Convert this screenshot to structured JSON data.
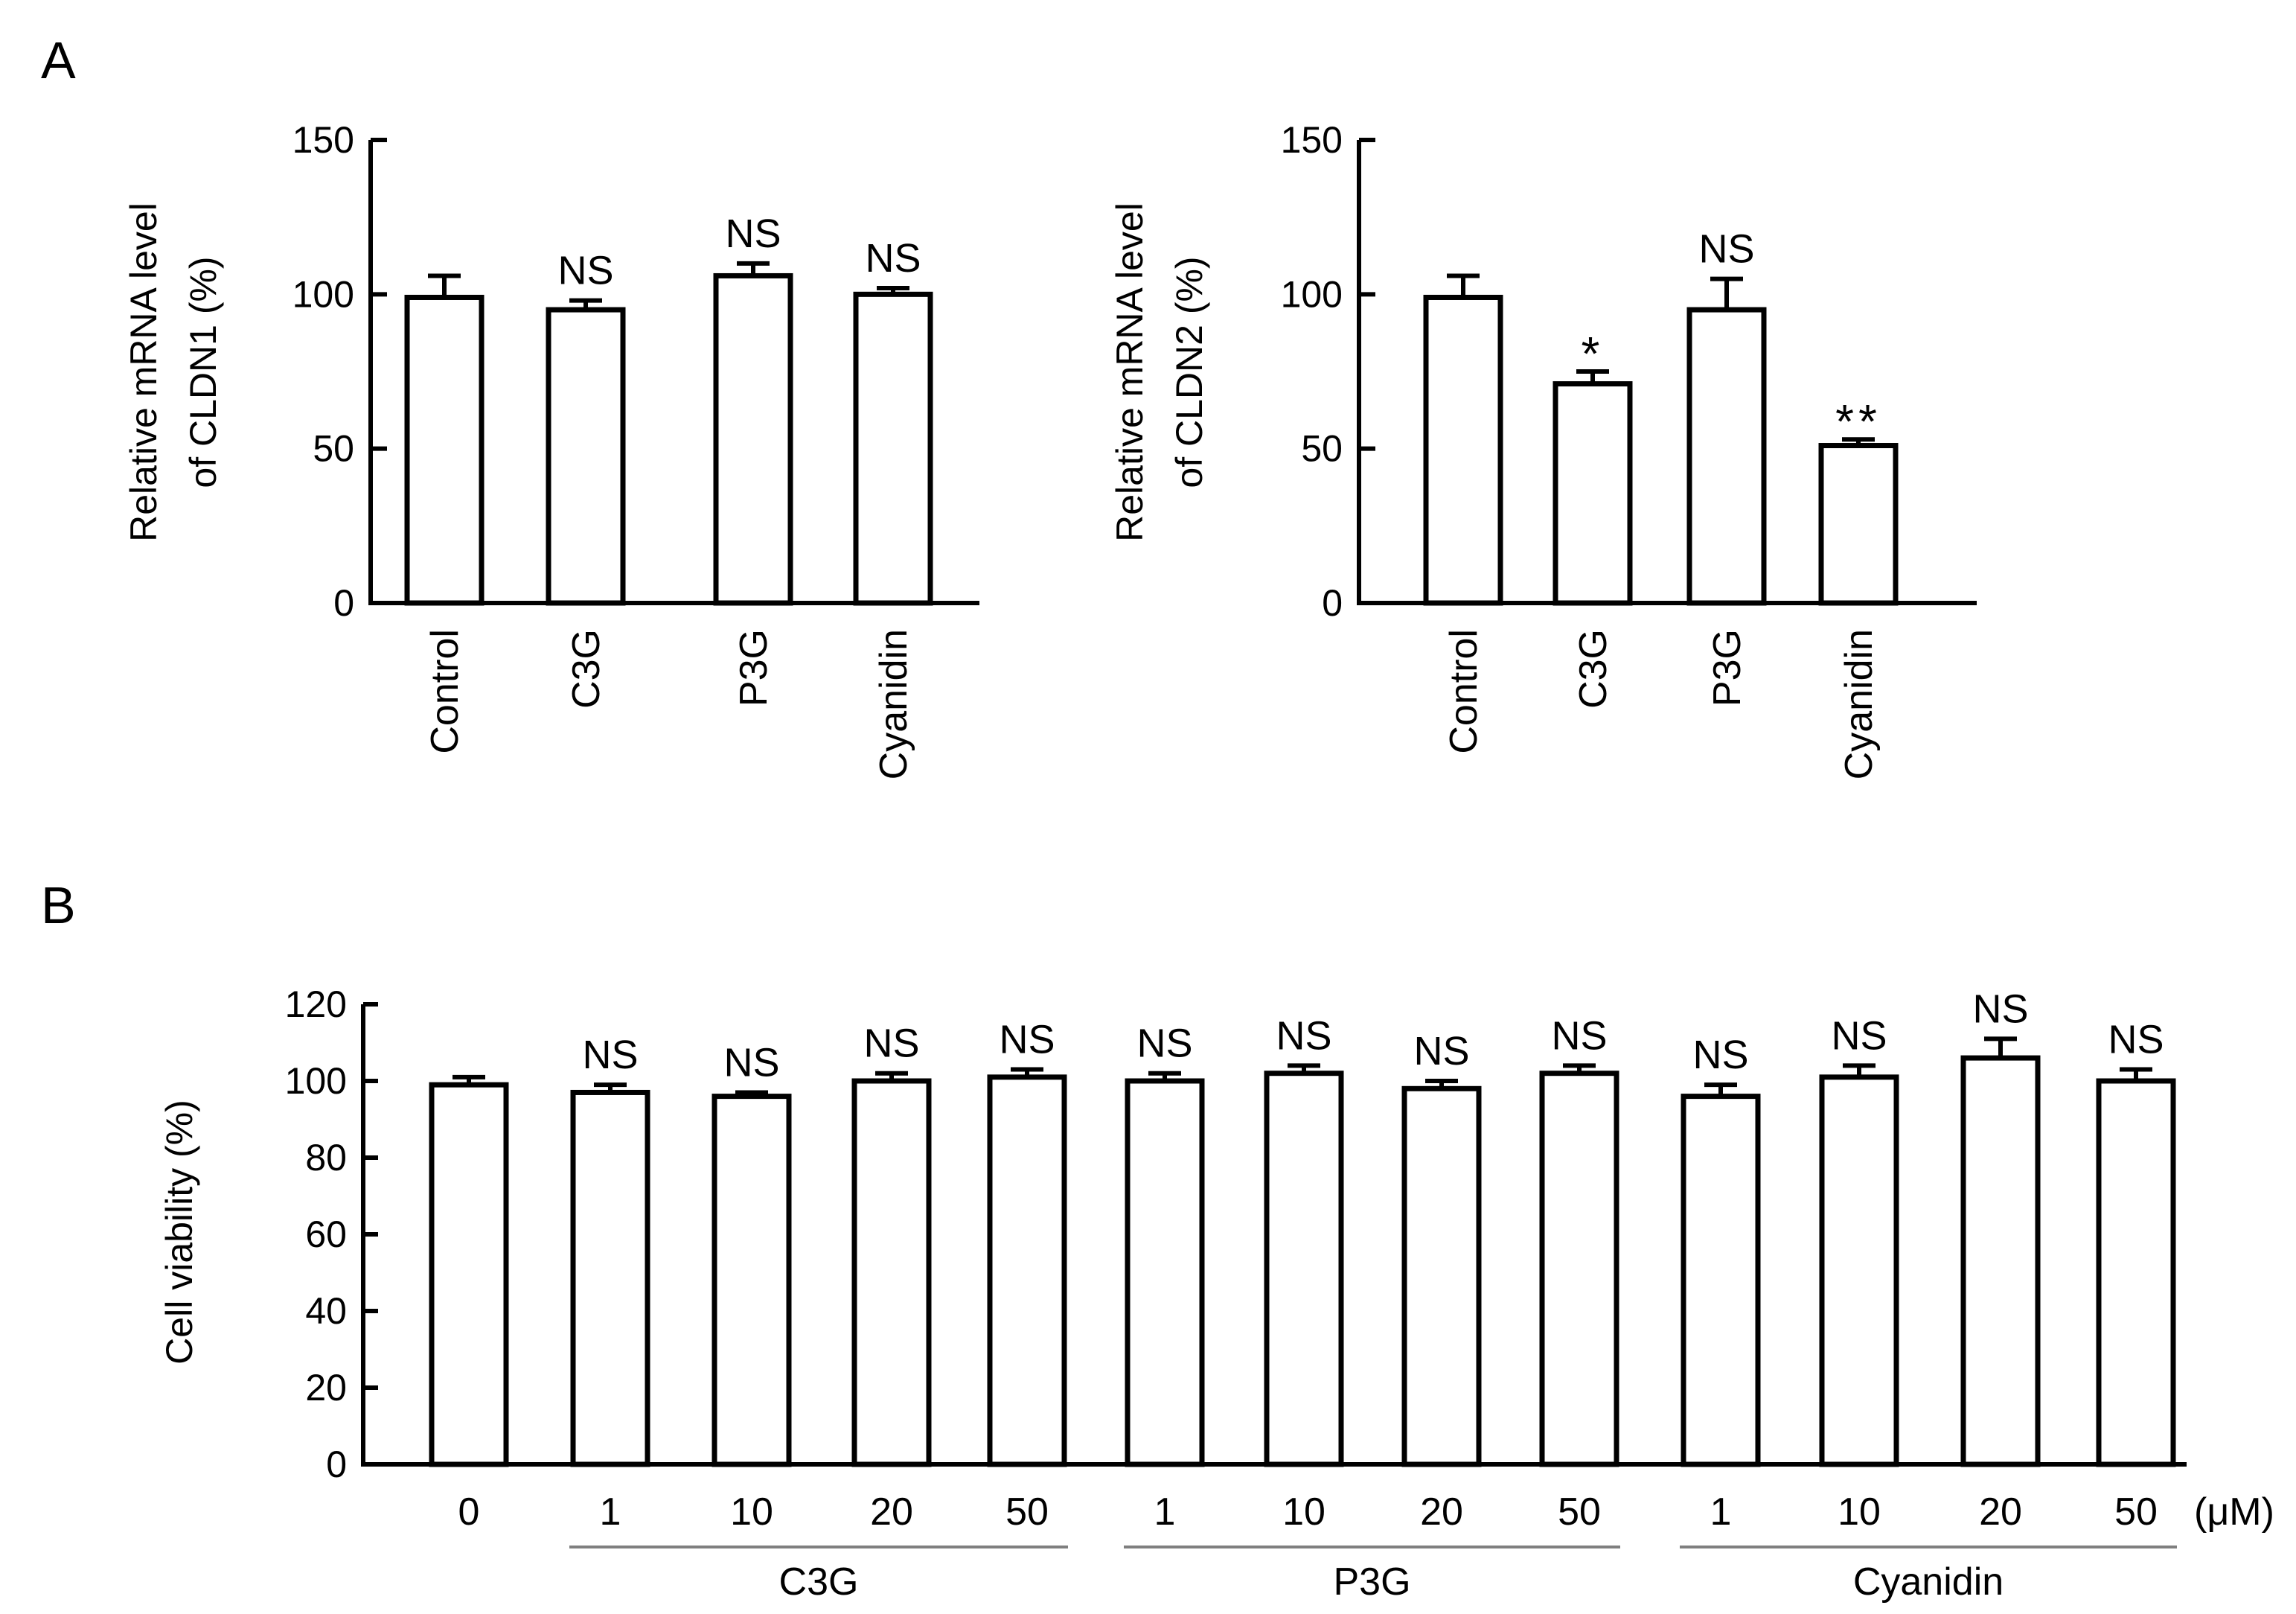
{
  "chart_data": [
    {
      "type": "bar",
      "panel": "A",
      "ylabel_line1": "Relative mRNA level",
      "ylabel_line2": "of CLDN1 (%)",
      "categories": [
        "Control",
        "C3G",
        "P3G",
        "Cyanidin"
      ],
      "values": [
        99,
        95,
        106,
        100
      ],
      "errors": [
        7,
        3,
        4,
        2
      ],
      "annotations": [
        "",
        "NS",
        "NS",
        "NS"
      ],
      "ylim": [
        0,
        150
      ],
      "yticks": [
        0,
        50,
        100,
        150
      ]
    },
    {
      "type": "bar",
      "ylabel_line1": "Relative mRNA level",
      "ylabel_line2": "of CLDN2 (%)",
      "categories": [
        "Control",
        "C3G",
        "P3G",
        "Cyanidin"
      ],
      "values": [
        99,
        71,
        95,
        51
      ],
      "errors": [
        7,
        4,
        10,
        2
      ],
      "annotations": [
        "",
        "*",
        "NS",
        "**"
      ],
      "ylim": [
        0,
        150
      ],
      "yticks": [
        0,
        50,
        100,
        150
      ]
    },
    {
      "type": "bar",
      "panel": "B",
      "ylabel": "Cell viability (%)",
      "categories": [
        "0",
        "1",
        "10",
        "20",
        "50",
        "1",
        "10",
        "20",
        "50",
        "1",
        "10",
        "20",
        "50"
      ],
      "values": [
        99,
        97,
        96,
        100,
        101,
        100,
        102,
        98,
        102,
        96,
        101,
        106,
        100
      ],
      "errors": [
        2,
        2,
        1,
        2,
        2,
        2,
        2,
        2,
        2,
        3,
        3,
        5,
        3
      ],
      "annotations": [
        "",
        "NS",
        "NS",
        "NS",
        "NS",
        "NS",
        "NS",
        "NS",
        "NS",
        "NS",
        "NS",
        "NS",
        "NS"
      ],
      "unit_label": "(μM)",
      "groups": [
        {
          "label": "C3G",
          "from": 1,
          "to": 4
        },
        {
          "label": "P3G",
          "from": 5,
          "to": 8
        },
        {
          "label": "Cyanidin",
          "from": 9,
          "to": 12
        }
      ],
      "ylim": [
        0,
        120
      ],
      "yticks": [
        0,
        20,
        40,
        60,
        80,
        100,
        120
      ]
    }
  ]
}
